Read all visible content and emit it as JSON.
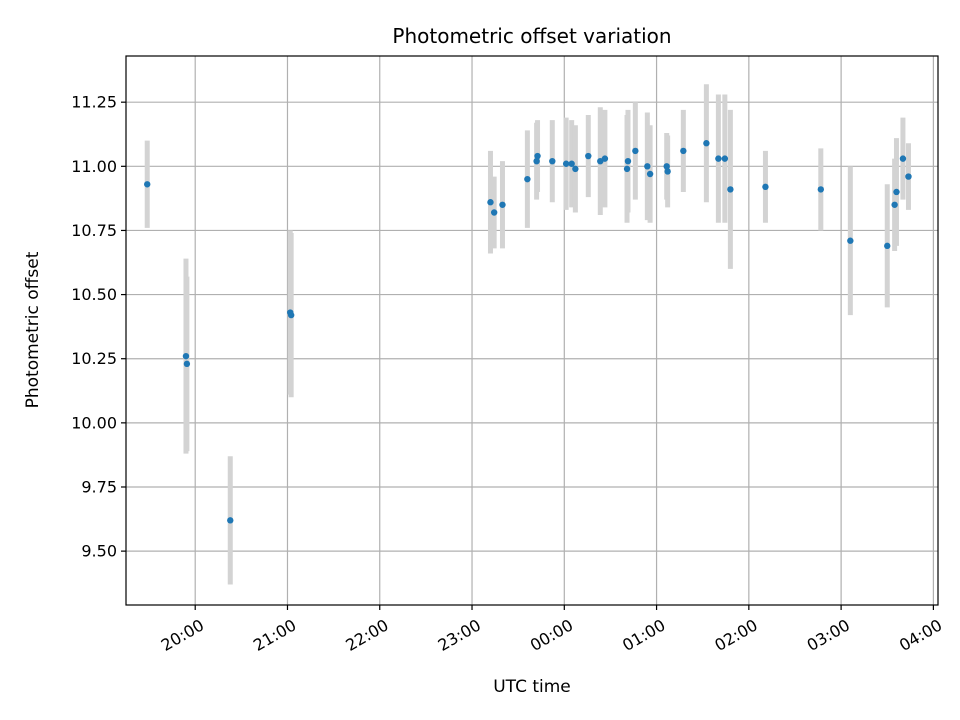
{
  "chart_data": {
    "type": "scatter",
    "title": "Photometric offset variation",
    "xlabel": "UTC time",
    "ylabel": "Photometric offset",
    "x_unit": "UTC time (hours, continuing past midnight as 24+)",
    "xlim": [
      19.25,
      28.05
    ],
    "ylim": [
      9.29,
      11.43
    ],
    "x_ticks": [
      {
        "value": 20,
        "label": "20:00"
      },
      {
        "value": 21,
        "label": "21:00"
      },
      {
        "value": 22,
        "label": "22:00"
      },
      {
        "value": 23,
        "label": "23:00"
      },
      {
        "value": 24,
        "label": "00:00"
      },
      {
        "value": 25,
        "label": "01:00"
      },
      {
        "value": 26,
        "label": "02:00"
      },
      {
        "value": 27,
        "label": "03:00"
      },
      {
        "value": 28,
        "label": "04:00"
      }
    ],
    "y_ticks": [
      {
        "value": 9.5,
        "label": "9.50"
      },
      {
        "value": 9.75,
        "label": "9.75"
      },
      {
        "value": 10.0,
        "label": "10.00"
      },
      {
        "value": 10.25,
        "label": "10.25"
      },
      {
        "value": 10.5,
        "label": "10.50"
      },
      {
        "value": 10.75,
        "label": "10.75"
      },
      {
        "value": 11.0,
        "label": "11.00"
      },
      {
        "value": 11.25,
        "label": "11.25"
      }
    ],
    "grid": true,
    "legend": "none",
    "colors": {
      "point": "#1f77b4",
      "errorbar": "#d3d3d3",
      "grid": "#b0b0b0",
      "axis": "#000000"
    },
    "series": [
      {
        "points": [
          {
            "x": 19.48,
            "y": 10.93,
            "err": 0.17
          },
          {
            "x": 19.9,
            "y": 10.26,
            "err": 0.38
          },
          {
            "x": 19.91,
            "y": 10.23,
            "err": 0.34
          },
          {
            "x": 20.38,
            "y": 9.62,
            "err": 0.25
          },
          {
            "x": 21.03,
            "y": 10.43,
            "err": 0.32
          },
          {
            "x": 21.04,
            "y": 10.42,
            "err": 0.32
          },
          {
            "x": 23.2,
            "y": 10.86,
            "err": 0.2
          },
          {
            "x": 23.24,
            "y": 10.82,
            "err": 0.14
          },
          {
            "x": 23.33,
            "y": 10.85,
            "err": 0.17
          },
          {
            "x": 23.6,
            "y": 10.95,
            "err": 0.19
          },
          {
            "x": 23.7,
            "y": 11.02,
            "err": 0.15
          },
          {
            "x": 23.71,
            "y": 11.04,
            "err": 0.14
          },
          {
            "x": 23.87,
            "y": 11.02,
            "err": 0.16
          },
          {
            "x": 24.02,
            "y": 11.01,
            "err": 0.18
          },
          {
            "x": 24.08,
            "y": 11.01,
            "err": 0.17
          },
          {
            "x": 24.12,
            "y": 10.99,
            "err": 0.17
          },
          {
            "x": 24.26,
            "y": 11.04,
            "err": 0.16
          },
          {
            "x": 24.39,
            "y": 11.02,
            "err": 0.21
          },
          {
            "x": 24.44,
            "y": 11.03,
            "err": 0.19
          },
          {
            "x": 24.68,
            "y": 10.99,
            "err": 0.21
          },
          {
            "x": 24.69,
            "y": 11.02,
            "err": 0.2
          },
          {
            "x": 24.77,
            "y": 11.06,
            "err": 0.19
          },
          {
            "x": 24.9,
            "y": 11.0,
            "err": 0.21
          },
          {
            "x": 24.93,
            "y": 10.97,
            "err": 0.19
          },
          {
            "x": 25.11,
            "y": 11.0,
            "err": 0.13
          },
          {
            "x": 25.12,
            "y": 10.98,
            "err": 0.14
          },
          {
            "x": 25.29,
            "y": 11.06,
            "err": 0.16
          },
          {
            "x": 25.54,
            "y": 11.09,
            "err": 0.23
          },
          {
            "x": 25.67,
            "y": 11.03,
            "err": 0.25
          },
          {
            "x": 25.74,
            "y": 11.03,
            "err": 0.25
          },
          {
            "x": 25.8,
            "y": 10.91,
            "err": 0.31
          },
          {
            "x": 26.18,
            "y": 10.92,
            "err": 0.14
          },
          {
            "x": 26.78,
            "y": 10.91,
            "err": 0.16
          },
          {
            "x": 27.1,
            "y": 10.71,
            "err": 0.29
          },
          {
            "x": 27.5,
            "y": 10.69,
            "err": 0.24
          },
          {
            "x": 27.58,
            "y": 10.85,
            "err": 0.18
          },
          {
            "x": 27.6,
            "y": 10.9,
            "err": 0.21
          },
          {
            "x": 27.67,
            "y": 11.03,
            "err": 0.16
          },
          {
            "x": 27.73,
            "y": 10.96,
            "err": 0.13
          }
        ]
      }
    ]
  }
}
